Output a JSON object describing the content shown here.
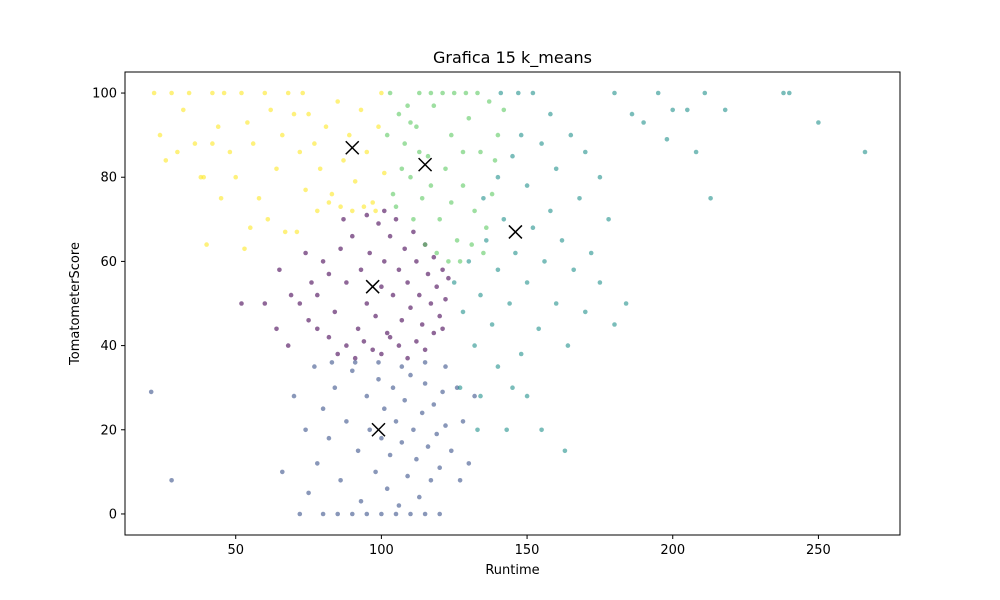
{
  "chart_data": {
    "type": "scatter",
    "title": "Grafica 15 k_means",
    "xlabel": "Runtime",
    "ylabel": "TomatometerScore",
    "xlim": [
      12,
      278
    ],
    "ylim": [
      -5,
      105
    ],
    "xticks": [
      50,
      100,
      150,
      200,
      250
    ],
    "yticks": [
      0,
      20,
      40,
      60,
      80,
      100
    ],
    "grid": false,
    "legend": "none",
    "point_alpha": 0.6,
    "clusters": [
      {
        "id": 0,
        "color": "#440154",
        "points": [
          [
            72,
            50
          ],
          [
            75,
            46
          ],
          [
            78,
            52
          ],
          [
            80,
            60
          ],
          [
            82,
            57
          ],
          [
            84,
            48
          ],
          [
            86,
            63
          ],
          [
            88,
            55
          ],
          [
            90,
            66
          ],
          [
            92,
            44
          ],
          [
            93,
            58
          ],
          [
            95,
            50
          ],
          [
            96,
            62
          ],
          [
            98,
            47
          ],
          [
            99,
            69
          ],
          [
            100,
            54
          ],
          [
            101,
            60
          ],
          [
            102,
            43
          ],
          [
            103,
            66
          ],
          [
            104,
            52
          ],
          [
            105,
            70
          ],
          [
            106,
            58
          ],
          [
            107,
            46
          ],
          [
            108,
            63
          ],
          [
            109,
            55
          ],
          [
            110,
            49
          ],
          [
            111,
            67
          ],
          [
            112,
            60
          ],
          [
            113,
            52
          ],
          [
            114,
            45
          ],
          [
            115,
            64
          ],
          [
            116,
            57
          ],
          [
            117,
            50
          ],
          [
            118,
            61
          ],
          [
            119,
            54
          ],
          [
            120,
            47
          ],
          [
            121,
            58
          ],
          [
            122,
            51
          ],
          [
            123,
            56
          ],
          [
            82,
            42
          ],
          [
            85,
            38
          ],
          [
            88,
            40
          ],
          [
            91,
            37
          ],
          [
            94,
            41
          ],
          [
            97,
            39
          ],
          [
            100,
            38
          ],
          [
            103,
            42
          ],
          [
            106,
            40
          ],
          [
            109,
            37
          ],
          [
            112,
            41
          ],
          [
            115,
            39
          ],
          [
            118,
            43
          ],
          [
            121,
            44
          ],
          [
            78,
            44
          ],
          [
            76,
            55
          ],
          [
            87,
            70
          ],
          [
            95,
            71
          ],
          [
            101,
            72
          ],
          [
            69,
            52
          ],
          [
            65,
            58
          ],
          [
            60,
            50
          ],
          [
            52,
            50
          ],
          [
            64,
            44
          ],
          [
            68,
            40
          ],
          [
            74,
            62
          ]
        ]
      },
      {
        "id": 1,
        "color": "#3b528b",
        "points": [
          [
            72,
            0
          ],
          [
            75,
            5
          ],
          [
            78,
            12
          ],
          [
            80,
            25
          ],
          [
            82,
            18
          ],
          [
            84,
            30
          ],
          [
            86,
            8
          ],
          [
            88,
            22
          ],
          [
            90,
            34
          ],
          [
            92,
            15
          ],
          [
            93,
            3
          ],
          [
            95,
            28
          ],
          [
            96,
            20
          ],
          [
            98,
            10
          ],
          [
            99,
            32
          ],
          [
            100,
            18
          ],
          [
            101,
            25
          ],
          [
            102,
            6
          ],
          [
            103,
            14
          ],
          [
            104,
            30
          ],
          [
            105,
            22
          ],
          [
            106,
            2
          ],
          [
            107,
            17
          ],
          [
            108,
            27
          ],
          [
            109,
            9
          ],
          [
            110,
            33
          ],
          [
            111,
            20
          ],
          [
            112,
            13
          ],
          [
            113,
            4
          ],
          [
            114,
            24
          ],
          [
            115,
            31
          ],
          [
            116,
            16
          ],
          [
            117,
            8
          ],
          [
            118,
            26
          ],
          [
            119,
            19
          ],
          [
            120,
            11
          ],
          [
            121,
            29
          ],
          [
            122,
            21
          ],
          [
            124,
            15
          ],
          [
            80,
            0
          ],
          [
            85,
            0
          ],
          [
            90,
            0
          ],
          [
            95,
            0
          ],
          [
            100,
            0
          ],
          [
            105,
            0
          ],
          [
            110,
            0
          ],
          [
            115,
            0
          ],
          [
            120,
            0
          ],
          [
            77,
            35
          ],
          [
            83,
            36
          ],
          [
            91,
            36
          ],
          [
            99,
            36
          ],
          [
            107,
            35
          ],
          [
            115,
            36
          ],
          [
            122,
            35
          ],
          [
            126,
            30
          ],
          [
            128,
            22
          ],
          [
            130,
            12
          ],
          [
            132,
            28
          ],
          [
            127,
            8
          ],
          [
            74,
            20
          ],
          [
            70,
            28
          ],
          [
            66,
            10
          ],
          [
            21,
            29
          ],
          [
            28,
            8
          ]
        ]
      },
      {
        "id": 2,
        "color": "#21918c",
        "points": [
          [
            125,
            55
          ],
          [
            128,
            48
          ],
          [
            130,
            60
          ],
          [
            132,
            40
          ],
          [
            134,
            52
          ],
          [
            136,
            65
          ],
          [
            138,
            45
          ],
          [
            140,
            58
          ],
          [
            142,
            70
          ],
          [
            144,
            50
          ],
          [
            146,
            62
          ],
          [
            148,
            38
          ],
          [
            150,
            55
          ],
          [
            152,
            68
          ],
          [
            154,
            44
          ],
          [
            156,
            60
          ],
          [
            158,
            72
          ],
          [
            160,
            50
          ],
          [
            162,
            65
          ],
          [
            164,
            40
          ],
          [
            166,
            58
          ],
          [
            168,
            75
          ],
          [
            170,
            48
          ],
          [
            172,
            62
          ],
          [
            175,
            55
          ],
          [
            178,
            70
          ],
          [
            180,
            45
          ],
          [
            184,
            50
          ],
          [
            135,
            75
          ],
          [
            140,
            80
          ],
          [
            145,
            85
          ],
          [
            150,
            78
          ],
          [
            155,
            88
          ],
          [
            160,
            82
          ],
          [
            165,
            90
          ],
          [
            170,
            86
          ],
          [
            175,
            80
          ],
          [
            180,
            100
          ],
          [
            186,
            95
          ],
          [
            190,
            93
          ],
          [
            195,
            100
          ],
          [
            200,
            96
          ],
          [
            205,
            96
          ],
          [
            211,
            100
          ],
          [
            218,
            96
          ],
          [
            238,
            100
          ],
          [
            240,
            100
          ],
          [
            250,
            93
          ],
          [
            266,
            86
          ],
          [
            208,
            86
          ],
          [
            213,
            75
          ],
          [
            198,
            89
          ],
          [
            127,
            30
          ],
          [
            134,
            28
          ],
          [
            140,
            35
          ],
          [
            145,
            30
          ],
          [
            150,
            28
          ],
          [
            155,
            20
          ],
          [
            163,
            15
          ],
          [
            133,
            20
          ],
          [
            143,
            20
          ],
          [
            148,
            90
          ],
          [
            158,
            95
          ],
          [
            141,
            100
          ],
          [
            147,
            100
          ],
          [
            152,
            100
          ]
        ]
      },
      {
        "id": 3,
        "color": "#5ec962",
        "points": [
          [
            103,
            100
          ],
          [
            106,
            95
          ],
          [
            108,
            88
          ],
          [
            110,
            80
          ],
          [
            112,
            92
          ],
          [
            114,
            75
          ],
          [
            116,
            85
          ],
          [
            118,
            97
          ],
          [
            120,
            70
          ],
          [
            122,
            82
          ],
          [
            124,
            90
          ],
          [
            126,
            65
          ],
          [
            128,
            78
          ],
          [
            130,
            94
          ],
          [
            132,
            72
          ],
          [
            134,
            86
          ],
          [
            136,
            68
          ],
          [
            104,
            76
          ],
          [
            107,
            82
          ],
          [
            111,
            70
          ],
          [
            115,
            64
          ],
          [
            119,
            62
          ],
          [
            123,
            60
          ],
          [
            127,
            60
          ],
          [
            131,
            64
          ],
          [
            135,
            62
          ],
          [
            102,
            90
          ],
          [
            105,
            73
          ],
          [
            109,
            97
          ],
          [
            113,
            100
          ],
          [
            117,
            100
          ],
          [
            121,
            100
          ],
          [
            125,
            100
          ],
          [
            129,
            100
          ],
          [
            133,
            100
          ],
          [
            137,
            98
          ],
          [
            139,
            84
          ],
          [
            138,
            76
          ],
          [
            140,
            90
          ],
          [
            142,
            96
          ],
          [
            128,
            86
          ],
          [
            124,
            74
          ],
          [
            117,
            78
          ],
          [
            113,
            86
          ],
          [
            110,
            93
          ]
        ]
      },
      {
        "id": 4,
        "color": "#fde725",
        "points": [
          [
            73,
            100
          ],
          [
            75,
            95
          ],
          [
            77,
            88
          ],
          [
            79,
            82
          ],
          [
            81,
            92
          ],
          [
            83,
            76
          ],
          [
            85,
            98
          ],
          [
            87,
            84
          ],
          [
            89,
            90
          ],
          [
            91,
            79
          ],
          [
            93,
            96
          ],
          [
            95,
            86
          ],
          [
            97,
            74
          ],
          [
            99,
            92
          ],
          [
            100,
            100
          ],
          [
            101,
            81
          ],
          [
            98,
            72
          ],
          [
            94,
            73
          ],
          [
            90,
            72
          ],
          [
            86,
            73
          ],
          [
            82,
            74
          ],
          [
            78,
            72
          ],
          [
            74,
            77
          ],
          [
            72,
            86
          ],
          [
            70,
            95
          ],
          [
            68,
            100
          ],
          [
            66,
            90
          ],
          [
            64,
            82
          ],
          [
            62,
            96
          ],
          [
            60,
            100
          ],
          [
            58,
            75
          ],
          [
            56,
            88
          ],
          [
            54,
            93
          ],
          [
            52,
            100
          ],
          [
            50,
            80
          ],
          [
            48,
            86
          ],
          [
            46,
            100
          ],
          [
            44,
            92
          ],
          [
            42,
            100
          ],
          [
            40,
            64
          ],
          [
            38,
            80
          ],
          [
            36,
            88
          ],
          [
            34,
            100
          ],
          [
            32,
            96
          ],
          [
            30,
            86
          ],
          [
            28,
            100
          ],
          [
            26,
            84
          ],
          [
            24,
            90
          ],
          [
            22,
            100
          ],
          [
            45,
            75
          ],
          [
            55,
            68
          ],
          [
            61,
            70
          ],
          [
            67,
            67
          ],
          [
            71,
            67
          ],
          [
            53,
            63
          ],
          [
            39,
            80
          ],
          [
            42,
            88
          ]
        ]
      }
    ],
    "centroids": [
      {
        "cluster": 0,
        "x": 97,
        "y": 54
      },
      {
        "cluster": 1,
        "x": 99,
        "y": 20
      },
      {
        "cluster": 2,
        "x": 146,
        "y": 67
      },
      {
        "cluster": 3,
        "x": 115,
        "y": 83
      },
      {
        "cluster": 4,
        "x": 90,
        "y": 87
      }
    ],
    "centroid_color": "#000000"
  }
}
